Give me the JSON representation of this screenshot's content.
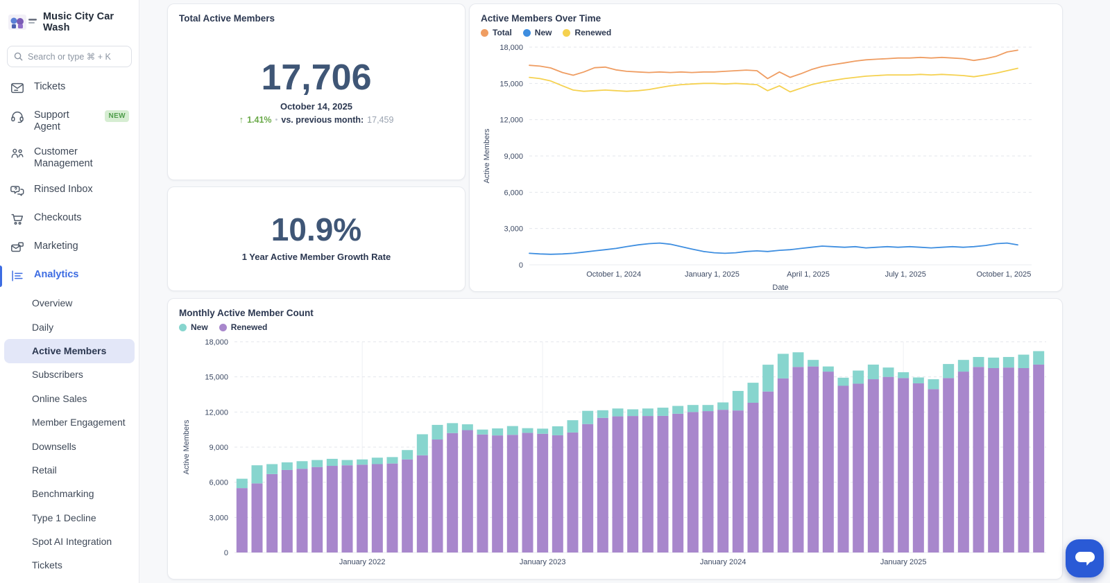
{
  "sidebar": {
    "brand": "Music City Car Wash",
    "search_placeholder": "Search or type ⌘ + K",
    "nav": [
      {
        "label": "Tickets",
        "icon": "tickets-icon"
      },
      {
        "label": "Support Agent",
        "icon": "headset-icon",
        "badge": "NEW"
      },
      {
        "label": "Customer Management",
        "icon": "people-icon"
      },
      {
        "label": "Rinsed Inbox",
        "icon": "chat-bubbles-icon"
      },
      {
        "label": "Checkouts",
        "icon": "cart-icon"
      },
      {
        "label": "Marketing",
        "icon": "mail-icon"
      },
      {
        "label": "Analytics",
        "icon": "analytics-icon",
        "active": true
      }
    ],
    "subnav": [
      {
        "label": "Overview"
      },
      {
        "label": "Daily"
      },
      {
        "label": "Active Members",
        "active": true
      },
      {
        "label": "Subscribers"
      },
      {
        "label": "Online Sales"
      },
      {
        "label": "Member Engagement"
      },
      {
        "label": "Downsells"
      },
      {
        "label": "Retail"
      },
      {
        "label": "Benchmarking"
      },
      {
        "label": "Type 1 Decline"
      },
      {
        "label": "Spot AI Integration"
      },
      {
        "label": "Tickets"
      }
    ]
  },
  "cards": {
    "total_members": {
      "title": "Total Active Members",
      "value": "17,706",
      "date": "October 14, 2025",
      "delta_arrow": "↑",
      "delta_pct": "1.41%",
      "delta_sep": "•",
      "delta_label": "vs. previous month:",
      "delta_prev": "17,459"
    },
    "growth": {
      "value": "10.9%",
      "label": "1 Year Active Member Growth Rate"
    }
  },
  "colors": {
    "accent_blue": "#3d6ce2",
    "green": "#6aa949",
    "line_total": "#ef9d62",
    "line_new": "#3e8ee0",
    "line_renewed": "#f5d14f",
    "bar_new": "#87d5ce",
    "bar_renewed": "#a887cc",
    "grid": "#e3e6eb",
    "axis_line": "#e9ebef",
    "chat_button": "#2a5ad6"
  },
  "chart_data": [
    {
      "type": "line",
      "title": "Active Members Over Time",
      "xlabel": "Date",
      "ylabel": "Active Members",
      "ylim": [
        0,
        18000
      ],
      "y_ticks": [
        0,
        3000,
        6000,
        9000,
        12000,
        15000,
        18000
      ],
      "grid": "horizontal-dashed",
      "legend_position": "top-left",
      "x_domain_days": [
        0,
        470
      ],
      "x_ticks": [
        {
          "label": "October 1, 2024",
          "day": 79
        },
        {
          "label": "January 1, 2025",
          "day": 171
        },
        {
          "label": "April 1, 2025",
          "day": 261
        },
        {
          "label": "July 1, 2025",
          "day": 352
        },
        {
          "label": "October 1, 2025",
          "day": 444
        }
      ],
      "sample_days": [
        0,
        10,
        20,
        31,
        41,
        51,
        61,
        71,
        81,
        91,
        102,
        112,
        122,
        132,
        142,
        152,
        163,
        173,
        183,
        193,
        203,
        213,
        223,
        234,
        244,
        254,
        264,
        274,
        284,
        295,
        305,
        315,
        325,
        335,
        345,
        356,
        366,
        376,
        386,
        396,
        406,
        416,
        427,
        437,
        447,
        457
      ],
      "series": [
        {
          "name": "Total",
          "color_key": "line_total",
          "values": [
            16500,
            16430,
            16280,
            15900,
            15680,
            15950,
            16300,
            16350,
            16120,
            16000,
            15950,
            15900,
            15950,
            15900,
            15950,
            15900,
            15950,
            15950,
            16000,
            16050,
            16100,
            16050,
            15400,
            15950,
            15500,
            15800,
            16150,
            16400,
            16550,
            16700,
            16850,
            16950,
            17000,
            17050,
            17100,
            17100,
            17150,
            17100,
            17150,
            17100,
            17050,
            16900,
            17050,
            17250,
            17600,
            17750
          ]
        },
        {
          "name": "New",
          "color_key": "line_new",
          "values": [
            950,
            900,
            870,
            900,
            950,
            1050,
            1150,
            1250,
            1350,
            1500,
            1650,
            1750,
            1800,
            1700,
            1500,
            1300,
            1100,
            1000,
            950,
            1000,
            1100,
            1150,
            1100,
            1200,
            1250,
            1350,
            1450,
            1550,
            1500,
            1450,
            1500,
            1400,
            1450,
            1500,
            1450,
            1500,
            1450,
            1400,
            1450,
            1500,
            1450,
            1500,
            1600,
            1750,
            1800,
            1650
          ]
        },
        {
          "name": "Renewed",
          "color_key": "line_renewed",
          "values": [
            15500,
            15400,
            15200,
            14800,
            14450,
            14350,
            14400,
            14450,
            14400,
            14350,
            14400,
            14500,
            14650,
            14800,
            14900,
            14950,
            15000,
            15000,
            14950,
            15000,
            14950,
            14900,
            14400,
            14800,
            14300,
            14600,
            14900,
            15100,
            15250,
            15400,
            15500,
            15600,
            15650,
            15700,
            15700,
            15700,
            15750,
            15700,
            15750,
            15700,
            15650,
            15550,
            15700,
            15850,
            16050,
            16250
          ]
        }
      ]
    },
    {
      "type": "bar",
      "stacked": true,
      "title": "Monthly Active Member Count",
      "xlabel": "",
      "ylabel": "Active Members",
      "ylim": [
        0,
        18000
      ],
      "y_ticks": [
        0,
        3000,
        6000,
        9000,
        12000,
        15000,
        18000
      ],
      "legend_position": "top-left",
      "x_ticks": [
        {
          "label": "January 2022",
          "index": 8
        },
        {
          "label": "January 2023",
          "index": 20
        },
        {
          "label": "January 2024",
          "index": 32
        },
        {
          "label": "January 2025",
          "index": 44
        }
      ],
      "series": [
        {
          "name": "New",
          "color_key": "bar_new",
          "stack_order": 2,
          "values": [
            800,
            1550,
            850,
            650,
            650,
            600,
            600,
            450,
            450,
            550,
            550,
            800,
            1800,
            1250,
            850,
            500,
            420,
            600,
            750,
            400,
            440,
            770,
            1050,
            1130,
            650,
            670,
            570,
            640,
            700,
            670,
            600,
            525,
            630,
            1670,
            1710,
            2290,
            2100,
            1250,
            560,
            440,
            690,
            1120,
            1250,
            800,
            500,
            500,
            850,
            1200,
            1000,
            850,
            900,
            900,
            1150,
            1150
          ]
        },
        {
          "name": "Renewed",
          "color_key": "bar_renewed",
          "stack_order": 1,
          "values": [
            5500,
            5900,
            6700,
            7050,
            7150,
            7300,
            7400,
            7450,
            7500,
            7550,
            7600,
            7950,
            8300,
            9650,
            10200,
            10450,
            10080,
            10000,
            10050,
            10220,
            10140,
            10010,
            10250,
            10970,
            11500,
            11630,
            11660,
            11660,
            11670,
            11850,
            12000,
            12075,
            12190,
            12130,
            12790,
            13750,
            14870,
            15850,
            15890,
            15450,
            14240,
            14420,
            14800,
            15000,
            14900,
            14450,
            13950,
            14900,
            15450,
            15850,
            15750,
            15800,
            15750,
            16050
          ]
        }
      ]
    }
  ],
  "chat_button": {
    "icon": "chat-bubble-icon"
  }
}
